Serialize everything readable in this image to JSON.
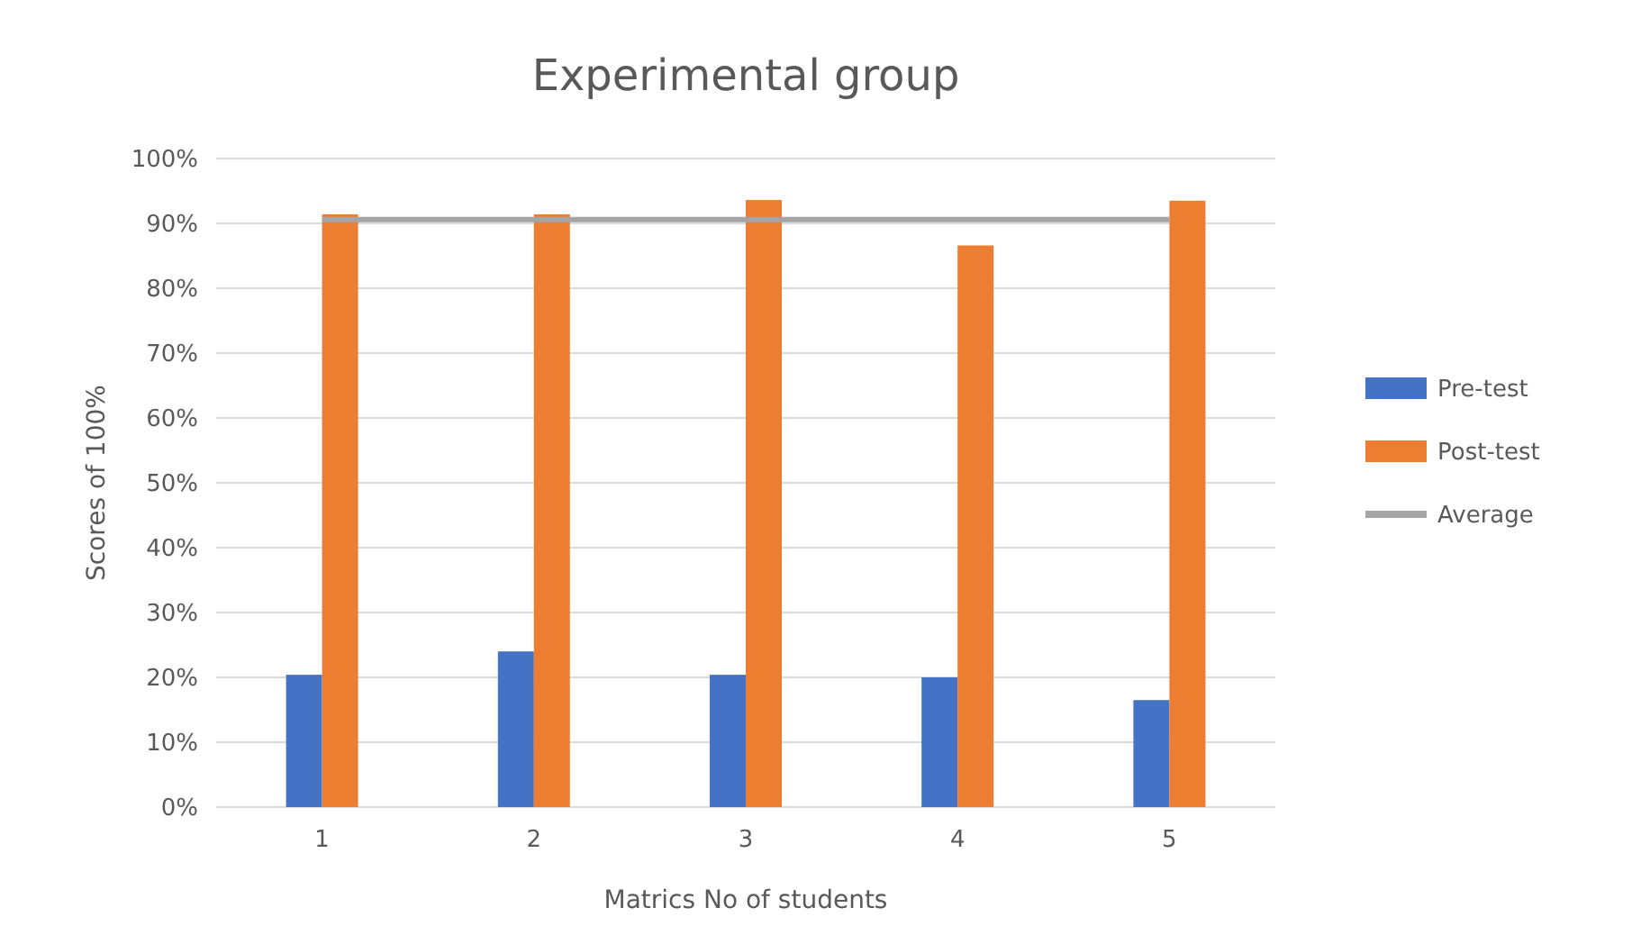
{
  "chart_data": {
    "type": "bar",
    "title": "Experimental group",
    "xlabel": "Matrics No of students",
    "ylabel": "Scores of 100%",
    "categories": [
      "1",
      "2",
      "3",
      "4",
      "5"
    ],
    "series": [
      {
        "name": "Pre-test",
        "color": "#4472c4",
        "values": [
          20.4,
          24,
          20.4,
          20,
          16.5
        ]
      },
      {
        "name": "Post-test",
        "color": "#ed7d31",
        "values": [
          91.4,
          91.4,
          93.6,
          86.6,
          93.5
        ]
      },
      {
        "name": "Average",
        "type": "line",
        "color": "#a5a5a5",
        "values": [
          90.6,
          90.6,
          90.6,
          90.6,
          90.6
        ],
        "marker": "none"
      }
    ],
    "ylim": [
      0,
      100
    ],
    "yticks": [
      {
        "value": 0,
        "label": "0%"
      },
      {
        "value": 10,
        "label": "10%"
      },
      {
        "value": 20,
        "label": "20%"
      },
      {
        "value": 30,
        "label": "30%"
      },
      {
        "value": 40,
        "label": "40%"
      },
      {
        "value": 50,
        "label": "50%"
      },
      {
        "value": 60,
        "label": "60%"
      },
      {
        "value": 70,
        "label": "70%"
      },
      {
        "value": 80,
        "label": "80%"
      },
      {
        "value": 90,
        "label": "90%"
      },
      {
        "value": 100,
        "label": "100%"
      }
    ],
    "grid": "y",
    "legend": "right"
  }
}
